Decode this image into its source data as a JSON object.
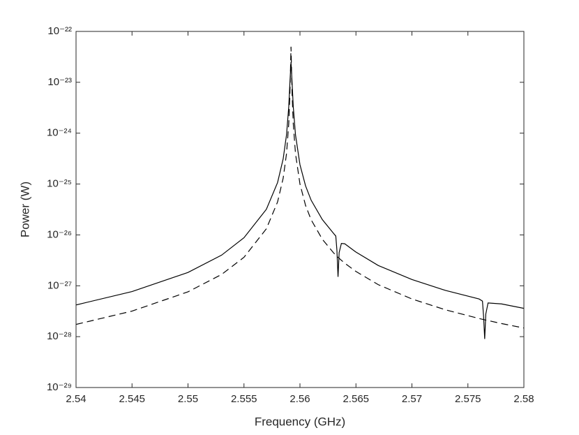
{
  "chart_data": {
    "type": "line",
    "xlabel": "Frequency (GHz)",
    "ylabel": "Power (W)",
    "x": [
      2.54,
      2.545,
      2.55,
      2.553,
      2.555,
      2.557,
      2.558,
      2.5585,
      2.5588,
      2.559,
      2.5591,
      2.5592,
      2.5593,
      2.5594,
      2.5596,
      2.56,
      2.5605,
      2.561,
      2.562,
      2.563,
      2.5632,
      2.5633,
      2.5634,
      2.5635,
      2.5637,
      2.564,
      2.565,
      2.567,
      2.57,
      2.573,
      2.576,
      2.5763,
      2.5764,
      2.5765,
      2.5766,
      2.5768,
      2.578,
      2.58
    ],
    "series": [
      {
        "color": "#000000",
        "linestyle": "solid",
        "values": [
          4.2e-28,
          7.7e-28,
          1.83e-27,
          4e-27,
          8.8e-27,
          3.19e-26,
          1.07e-25,
          3.12e-25,
          9.3e-25,
          3.35e-24,
          9.6e-24,
          2.5e-23,
          9.6e-24,
          3.35e-24,
          9.3e-25,
          2.4e-25,
          9.2e-26,
          4.8e-26,
          2e-26,
          1.07e-26,
          9.5e-27,
          5e-27,
          1.5e-27,
          4.5e-27,
          6.8e-27,
          6.7e-27,
          4.6e-27,
          2.5e-27,
          1.33e-27,
          8.1e-28,
          5.5e-28,
          5e-28,
          2.5e-28,
          9e-29,
          2.8e-28,
          4.6e-28,
          4.4e-28,
          3.6e-28
        ]
      },
      {
        "color": "#000000",
        "linestyle": "dashed",
        "values": [
          1.74e-28,
          3.18e-28,
          7.6e-28,
          1.67e-27,
          3.63e-27,
          1.32e-26,
          4.45e-26,
          1.3e-25,
          3.97e-25,
          1.55e-24,
          5.7e-24,
          5e-23,
          5.7e-24,
          1.55e-24,
          3.97e-25,
          1e-25,
          3.79e-26,
          1.98e-26,
          8.2e-27,
          4.44e-27,
          4e-27,
          3.81e-27,
          3.63e-27,
          3.47e-27,
          3.17e-27,
          2.78e-27,
          1.91e-27,
          1.05e-27,
          5.5e-28,
          3.37e-28,
          2.27e-28,
          2.19e-28,
          2.17e-28,
          2.14e-28,
          2.12e-28,
          2.07e-28,
          1.81e-28,
          1.48e-28
        ]
      }
    ],
    "xlim": [
      2.54,
      2.58
    ],
    "xticks": [
      2.54,
      2.545,
      2.55,
      2.555,
      2.56,
      2.565,
      2.57,
      2.575,
      2.58
    ],
    "ylim": [
      1e-29,
      1e-22
    ],
    "yscale": "log",
    "yticks": [
      {
        "value": 1e-29,
        "label": "10⁻²⁹"
      },
      {
        "value": 1e-28,
        "label": "10⁻²⁸"
      },
      {
        "value": 1e-27,
        "label": "10⁻²⁷"
      },
      {
        "value": 1e-26,
        "label": "10⁻²⁶"
      },
      {
        "value": 1e-25,
        "label": "10⁻²⁵"
      },
      {
        "value": 1e-24,
        "label": "10⁻²⁴"
      },
      {
        "value": 1e-23,
        "label": "10⁻²³"
      },
      {
        "value": 1e-22,
        "label": "10⁻²²"
      }
    ],
    "grid": false
  }
}
